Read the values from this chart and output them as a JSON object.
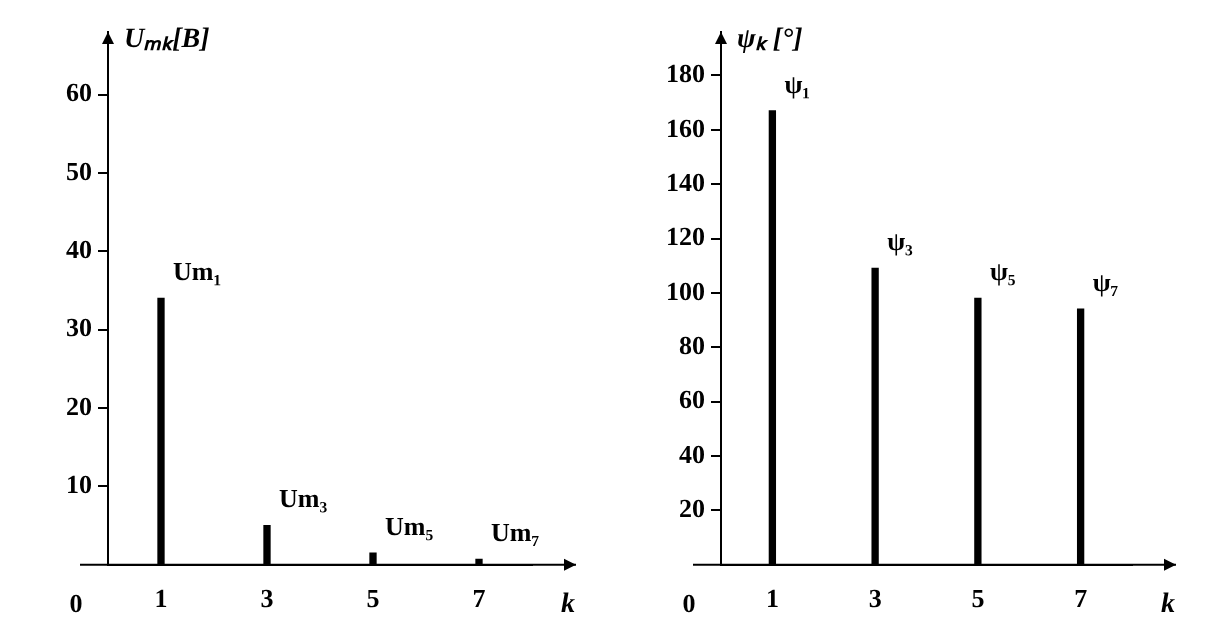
{
  "chart_data": [
    {
      "type": "bar",
      "ylabel": "Uₘₖ[В]",
      "xlabel": "k",
      "categories": [
        "1",
        "3",
        "5",
        "7"
      ],
      "values": [
        34,
        5,
        1.5,
        0.7
      ],
      "color": "#000000",
      "ylim": [
        0,
        68
      ],
      "yticks": [
        10,
        20,
        30,
        40,
        50,
        60
      ],
      "annotations": [
        "0",
        {
          "text": "Um₁",
          "x": "1",
          "y": 34
        },
        {
          "text": "Um₃",
          "x": "3",
          "y": 5
        },
        {
          "text": "Um₅",
          "x": "5",
          "y": 1.5
        },
        {
          "text": "Um₇",
          "x": "7",
          "y": 0.7
        }
      ]
    },
    {
      "type": "bar",
      "ylabel": "ψₖ [°]",
      "xlabel": "k",
      "categories": [
        "1",
        "3",
        "5",
        "7"
      ],
      "values": [
        167,
        109,
        98,
        94
      ],
      "color": "#000000",
      "ylim": [
        0,
        196
      ],
      "yticks": [
        20,
        40,
        60,
        80,
        100,
        120,
        140,
        160,
        180
      ],
      "annotations": [
        "0",
        {
          "text": "ψ₁",
          "x": "1",
          "y": 167
        },
        {
          "text": "ψ₃",
          "x": "3",
          "y": 109
        },
        {
          "text": "ψ₅",
          "x": "5",
          "y": 98
        },
        {
          "text": "ψ₇",
          "x": "7",
          "y": 94
        }
      ]
    }
  ]
}
